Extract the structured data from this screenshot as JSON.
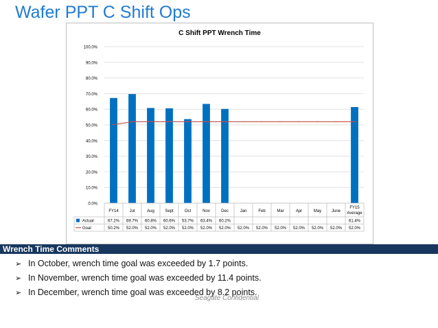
{
  "slide": {
    "title": "Wafer PPT C Shift Ops",
    "footer": "Seagate Confidential"
  },
  "comments": {
    "header": "Wrench Time Comments",
    "items": [
      "In October, wrench time goal was exceeded by 1.7 points.",
      "In November, wrench time goal was exceeded by 11.4 points.",
      "In December, wrench time goal was exceeded by 8.2 points."
    ]
  },
  "colors": {
    "title": "#1f7bd1",
    "bar": "#0070c0",
    "goal": "#c0504d",
    "comments_bar": "#17375e"
  },
  "chart_data": {
    "type": "bar",
    "title": "C Shift PPT Wrench Time",
    "categories": [
      {
        "lines": [
          "FY14"
        ]
      },
      {
        "lines": [
          "Jul"
        ]
      },
      {
        "lines": [
          "Aug"
        ]
      },
      {
        "lines": [
          "Sept"
        ]
      },
      {
        "lines": [
          "Oct"
        ]
      },
      {
        "lines": [
          "Nov"
        ]
      },
      {
        "lines": [
          "Dec"
        ]
      },
      {
        "lines": [
          "Jan"
        ]
      },
      {
        "lines": [
          "Feb"
        ]
      },
      {
        "lines": [
          "Mar"
        ]
      },
      {
        "lines": [
          "Apr"
        ]
      },
      {
        "lines": [
          "May"
        ]
      },
      {
        "lines": [
          "June"
        ]
      },
      {
        "lines": [
          "FY15",
          "Average"
        ]
      }
    ],
    "y_ticks": [
      "100.0%",
      "90.0%",
      "80.0%",
      "70.0%",
      "60.0%",
      "50.0%",
      "40.0%",
      "30.0%",
      "20.0%",
      "10.0%",
      "0.0%"
    ],
    "ylim": [
      0,
      100
    ],
    "grid": true,
    "legend": "data-table",
    "series": [
      {
        "name": "Actual",
        "kind": "bar",
        "values": [
          67.2,
          69.7,
          60.8,
          60.6,
          53.7,
          63.4,
          60.2,
          null,
          null,
          null,
          null,
          null,
          null,
          61.4
        ],
        "labels": [
          "67.2%",
          "69.7%",
          "60.8%",
          "60.6%",
          "53.7%",
          "63.4%",
          "60.2%",
          "",
          "",
          "",
          "",
          "",
          "",
          "61.4%"
        ]
      },
      {
        "name": "Goal",
        "kind": "line",
        "values": [
          50.2,
          52.0,
          52.0,
          52.0,
          52.0,
          52.0,
          52.0,
          52.0,
          52.0,
          52.0,
          52.0,
          52.0,
          52.0,
          52.0
        ],
        "labels": [
          "50.2%",
          "52.0%",
          "52.0%",
          "52.0%",
          "52.0%",
          "52.0%",
          "52.0%",
          "52.0%",
          "52.0%",
          "52.0%",
          "52.0%",
          "52.0%",
          "52.0%",
          "52.0%"
        ]
      }
    ]
  }
}
